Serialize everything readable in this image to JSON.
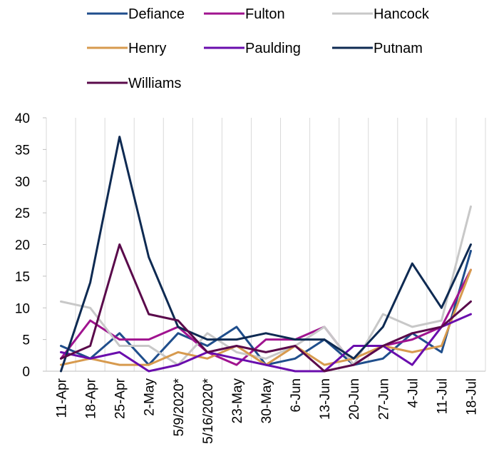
{
  "chart_data": {
    "type": "line",
    "title": "",
    "xlabel": "",
    "ylabel": "",
    "ylim": [
      0,
      40
    ],
    "yticks": [
      0,
      5,
      10,
      15,
      20,
      25,
      30,
      35,
      40
    ],
    "grid": "vertical",
    "legend_position": "top",
    "categories": [
      "11-Apr",
      "18-Apr",
      "25-Apr",
      "2-May",
      "5/9/2020*",
      "5/16/2020*",
      "23-May",
      "30-May",
      "6-Jun",
      "13-Jun",
      "20-Jun",
      "27-Jun",
      "4-Jul",
      "11-Jul",
      "18-Jul"
    ],
    "series": [
      {
        "name": "Defiance",
        "color": "#1f4e8c",
        "values": [
          4,
          2,
          6,
          1,
          6,
          4,
          7,
          1,
          2,
          5,
          1,
          2,
          6,
          3,
          19
        ]
      },
      {
        "name": "Fulton",
        "color": "#a0138f",
        "values": [
          2,
          8,
          5,
          5,
          7,
          3,
          1,
          5,
          5,
          7,
          1,
          4,
          5,
          7,
          16
        ]
      },
      {
        "name": "Hancock",
        "color": "#c8c8c8",
        "values": [
          11,
          10,
          4,
          4,
          1,
          6,
          3,
          2,
          4,
          7,
          1,
          9,
          7,
          8,
          26
        ]
      },
      {
        "name": "Henry",
        "color": "#d79a4e",
        "values": [
          1,
          2,
          1,
          1,
          3,
          2,
          4,
          1,
          4,
          1,
          2,
          4,
          3,
          4,
          16
        ]
      },
      {
        "name": "Paulding",
        "color": "#6a0dad",
        "values": [
          3,
          2,
          3,
          0,
          1,
          3,
          2,
          1,
          0,
          0,
          4,
          4,
          1,
          7,
          9
        ]
      },
      {
        "name": "Putnam",
        "color": "#0e2a52",
        "values": [
          0,
          14,
          37,
          18,
          7,
          5,
          5,
          6,
          5,
          5,
          2,
          7,
          17,
          10,
          20
        ]
      },
      {
        "name": "Williams",
        "color": "#5a0a4b",
        "values": [
          2,
          4,
          20,
          9,
          8,
          3,
          4,
          3,
          4,
          0,
          1,
          4,
          6,
          7,
          11
        ]
      }
    ]
  }
}
